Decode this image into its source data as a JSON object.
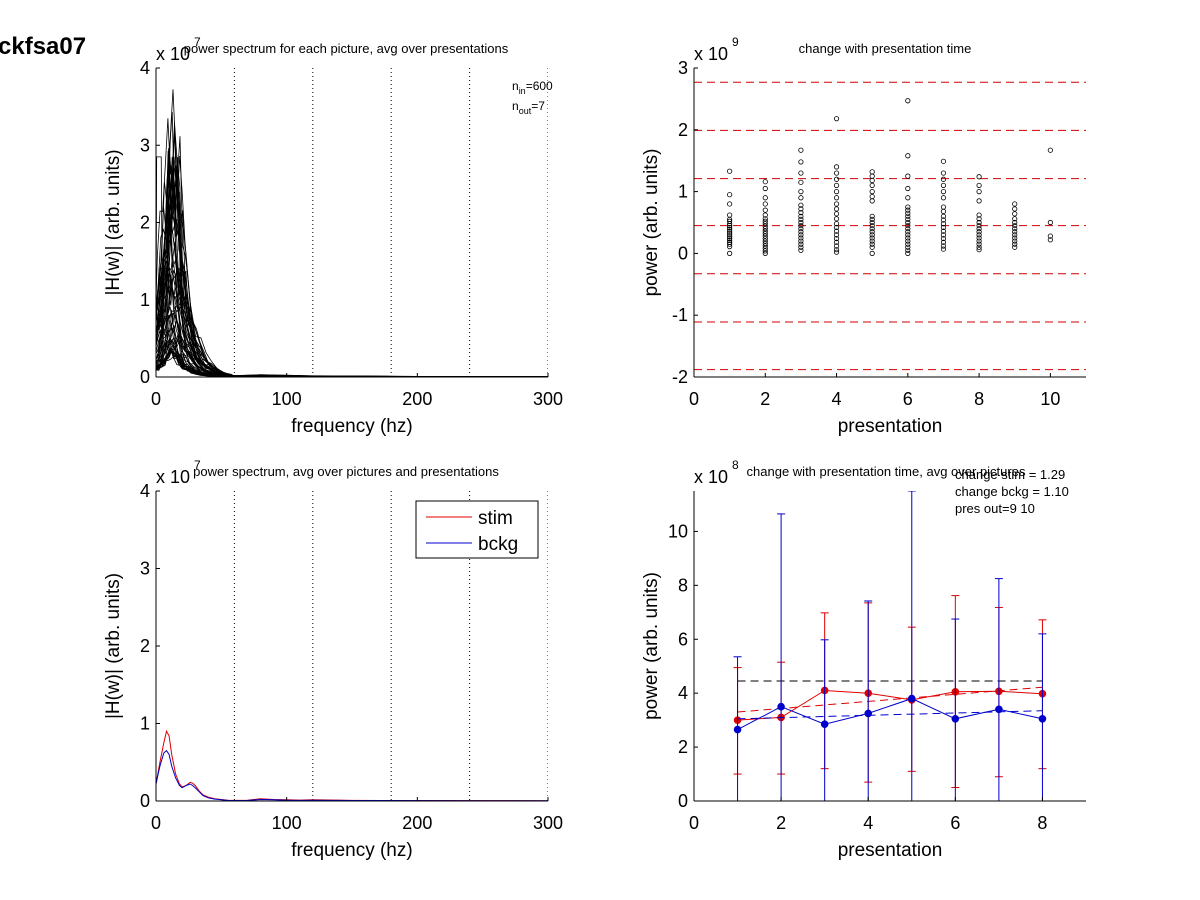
{
  "figure_label": "ckfsa07",
  "chart_data": [
    {
      "id": "tl",
      "type": "line",
      "title": "power spectrum for each picture, avg over presentations",
      "xlabel": "frequency (hz)",
      "ylabel": "|H(w)| (arb. units)",
      "multiplier": "x 10",
      "exponent": "7",
      "xlim": [
        0,
        300
      ],
      "ylim": [
        0,
        4
      ],
      "xticks": [
        0,
        100,
        200,
        300
      ],
      "yticks": [
        0,
        1,
        2,
        3,
        4
      ],
      "vlines": [
        60,
        120,
        180,
        240,
        300
      ],
      "annotation": {
        "n_in_sub": "in",
        "n_in_val": "=600",
        "n_out_sub": "out",
        "n_out_val": "=7"
      },
      "peak_profile": {
        "freq": [
          0,
          2,
          4,
          6,
          8,
          10,
          12,
          14,
          16,
          18,
          20,
          22,
          25,
          28,
          32,
          36,
          40,
          45,
          50,
          55,
          60,
          70,
          80,
          100,
          120,
          150,
          200,
          250,
          300
        ],
        "shape": [
          0.3,
          0.35,
          0.45,
          0.6,
          0.78,
          0.92,
          1.0,
          0.97,
          0.85,
          0.7,
          0.55,
          0.42,
          0.3,
          0.22,
          0.14,
          0.09,
          0.06,
          0.035,
          0.02,
          0.01,
          0.005,
          0.006,
          0.008,
          0.006,
          0.004,
          0.003,
          0.002,
          0.002,
          0.001
        ]
      },
      "peak_range": [
        0.3,
        3.4
      ],
      "n_lines": 60
    },
    {
      "id": "tr",
      "type": "scatter",
      "title": "change with presentation time",
      "xlabel": "presentation",
      "ylabel": "power (arb. units)",
      "multiplier": "x 10",
      "exponent": "9",
      "xlim": [
        0,
        11
      ],
      "ylim": [
        -2,
        3
      ],
      "xticks": [
        0,
        2,
        4,
        6,
        8,
        10
      ],
      "yticks": [
        -2,
        -1,
        0,
        1,
        2,
        3
      ],
      "hlines": [
        2.77,
        1.99,
        1.21,
        0.45,
        -0.33,
        -1.11,
        -1.88
      ],
      "points": {
        "1": [
          1.33,
          0.95,
          0.8,
          0.62,
          0.55,
          0.52,
          0.48,
          0.45,
          0.42,
          0.39,
          0.36,
          0.33,
          0.3,
          0.27,
          0.24,
          0.21,
          0.18,
          0.15,
          0.11,
          0.0
        ],
        "2": [
          1.16,
          1.05,
          0.9,
          0.8,
          0.7,
          0.62,
          0.56,
          0.52,
          0.48,
          0.44,
          0.4,
          0.36,
          0.32,
          0.28,
          0.24,
          0.2,
          0.16,
          0.12,
          0.08,
          0.04,
          0.0
        ],
        "3": [
          1.67,
          1.48,
          1.3,
          1.15,
          1.0,
          0.9,
          0.78,
          0.72,
          0.66,
          0.6,
          0.55,
          0.5,
          0.45,
          0.4,
          0.35,
          0.3,
          0.25,
          0.2,
          0.15,
          0.1,
          0.05
        ],
        "4": [
          2.18,
          1.4,
          1.3,
          1.2,
          1.1,
          1.0,
          0.9,
          0.8,
          0.72,
          0.64,
          0.56,
          0.48,
          0.42,
          0.36,
          0.3,
          0.24,
          0.18,
          0.12,
          0.06,
          0.02
        ],
        "5": [
          1.32,
          1.25,
          1.18,
          1.1,
          1.0,
          0.92,
          0.85,
          0.6,
          0.55,
          0.5,
          0.45,
          0.4,
          0.35,
          0.3,
          0.25,
          0.2,
          0.15,
          0.1,
          0.0
        ],
        "6": [
          2.47,
          1.58,
          1.25,
          1.05,
          0.9,
          0.75,
          0.7,
          0.65,
          0.6,
          0.55,
          0.5,
          0.45,
          0.4,
          0.35,
          0.3,
          0.25,
          0.2,
          0.15,
          0.1,
          0.05,
          0.0
        ],
        "7": [
          1.49,
          1.3,
          1.2,
          1.1,
          1.0,
          0.9,
          0.75,
          0.68,
          0.6,
          0.54,
          0.48,
          0.42,
          0.36,
          0.3,
          0.24,
          0.18,
          0.12,
          0.07
        ],
        "8": [
          1.24,
          1.1,
          1.0,
          0.85,
          0.62,
          0.56,
          0.5,
          0.45,
          0.4,
          0.35,
          0.3,
          0.25,
          0.2,
          0.15,
          0.1,
          0.06
        ],
        "9": [
          0.8,
          0.72,
          0.64,
          0.56,
          0.5,
          0.45,
          0.4,
          0.35,
          0.3,
          0.25,
          0.2,
          0.15,
          0.1
        ],
        "10": [
          1.67,
          0.5,
          0.28,
          0.22
        ]
      }
    },
    {
      "id": "bl",
      "type": "line",
      "title": "power spectrum, avg over pictures and presentations",
      "xlabel": "frequency (hz)",
      "ylabel": "|H(w)| (arb. units)",
      "multiplier": "x 10",
      "exponent": "7",
      "xlim": [
        0,
        300
      ],
      "ylim": [
        0,
        4
      ],
      "xticks": [
        0,
        100,
        200,
        300
      ],
      "yticks": [
        0,
        1,
        2,
        3,
        4
      ],
      "vlines": [
        60,
        120,
        180,
        240,
        300
      ],
      "legend": {
        "placement": "top-right",
        "entries": [
          {
            "name": "stim",
            "color": "#e00000"
          },
          {
            "name": "bckg",
            "color": "#0000cc"
          }
        ]
      },
      "series": [
        {
          "name": "stim",
          "color": "#e00000",
          "x": [
            0,
            3,
            6,
            8,
            10,
            12,
            15,
            18,
            20,
            23,
            26,
            28,
            30,
            33,
            36,
            40,
            45,
            50,
            55,
            60,
            70,
            80,
            90,
            100,
            110,
            120,
            150,
            200,
            250,
            300
          ],
          "y": [
            0.22,
            0.5,
            0.75,
            0.9,
            0.84,
            0.6,
            0.35,
            0.22,
            0.18,
            0.2,
            0.24,
            0.23,
            0.2,
            0.13,
            0.08,
            0.05,
            0.03,
            0.02,
            0.01,
            0.008,
            0.01,
            0.03,
            0.02,
            0.015,
            0.012,
            0.015,
            0.008,
            0.006,
            0.005,
            0.004
          ]
        },
        {
          "name": "bckg",
          "color": "#0000cc",
          "x": [
            0,
            3,
            6,
            8,
            10,
            12,
            15,
            18,
            20,
            23,
            26,
            28,
            30,
            33,
            36,
            40,
            45,
            50,
            55,
            60,
            70,
            80,
            90,
            100,
            110,
            120,
            150,
            200,
            250,
            300
          ],
          "y": [
            0.22,
            0.45,
            0.62,
            0.65,
            0.6,
            0.45,
            0.3,
            0.2,
            0.17,
            0.2,
            0.22,
            0.2,
            0.17,
            0.12,
            0.07,
            0.04,
            0.025,
            0.015,
            0.008,
            0.006,
            0.008,
            0.02,
            0.015,
            0.01,
            0.008,
            0.01,
            0.006,
            0.005,
            0.004,
            0.003
          ]
        }
      ]
    },
    {
      "id": "br",
      "type": "line",
      "title": "change with presentation time, avg over pictures",
      "xlabel": "presentation",
      "ylabel": "power (arb. units)",
      "multiplier": "x 10",
      "exponent": "8",
      "xlim": [
        0,
        9
      ],
      "ylim": [
        0,
        11.5
      ],
      "xticks": [
        0,
        2,
        4,
        6,
        8
      ],
      "yticks": [
        0,
        2,
        4,
        6,
        8,
        10
      ],
      "annotations": [
        "change stim = 1.29",
        "change bckg = 1.10",
        "pres out=9 10"
      ],
      "hline": {
        "y": 4.45,
        "color": "#000000"
      },
      "series": [
        {
          "name": "",
          "color": "#e00000",
          "x": [
            1,
            2,
            3,
            4,
            5,
            6,
            7,
            8
          ],
          "y": [
            3.0,
            3.1,
            4.1,
            4.0,
            3.75,
            4.05,
            4.07,
            3.98
          ],
          "err_low": [
            1.0,
            1.0,
            1.2,
            0.7,
            1.1,
            0.5,
            0.9,
            1.2
          ],
          "err_high": [
            4.95,
            5.15,
            6.98,
            7.35,
            6.45,
            7.62,
            7.18,
            6.72
          ],
          "trend": [
            3.3,
            4.22
          ]
        },
        {
          "name": "",
          "color": "#0000cc",
          "x": [
            1,
            2,
            3,
            4,
            5,
            6,
            7,
            8
          ],
          "y": [
            2.65,
            3.5,
            2.85,
            3.25,
            3.8,
            3.05,
            3.4,
            3.05
          ],
          "err_low": [
            0,
            0,
            0,
            0,
            0,
            0,
            0,
            0
          ],
          "err_high": [
            5.35,
            10.65,
            5.98,
            7.42,
            11.5,
            6.75,
            8.25,
            6.2
          ],
          "trend": [
            3.05,
            3.35
          ]
        }
      ]
    }
  ]
}
